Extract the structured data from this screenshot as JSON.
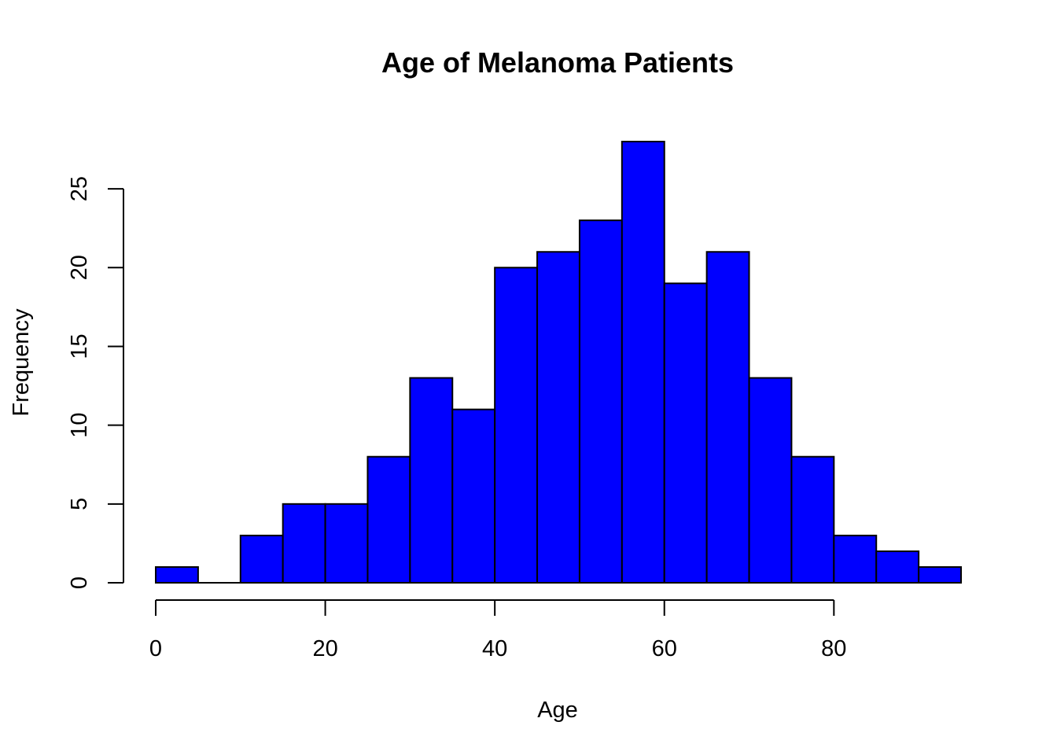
{
  "chart_data": {
    "type": "bar",
    "title": "Age of Melanoma Patients",
    "xlabel": "Age",
    "ylabel": "Frequency",
    "bin_edges": [
      0,
      5,
      10,
      15,
      20,
      25,
      30,
      35,
      40,
      45,
      50,
      55,
      60,
      65,
      70,
      75,
      80,
      85,
      90,
      95
    ],
    "values": [
      1,
      0,
      3,
      5,
      5,
      8,
      13,
      11,
      20,
      21,
      23,
      28,
      19,
      21,
      13,
      8,
      3,
      2,
      1
    ],
    "xlim": [
      0,
      95
    ],
    "ylim": [
      0,
      28
    ],
    "x_ticks": [
      0,
      20,
      40,
      60,
      80
    ],
    "y_ticks": [
      0,
      5,
      10,
      15,
      20,
      25
    ],
    "bar_color": "#0000ff",
    "grid": false
  }
}
